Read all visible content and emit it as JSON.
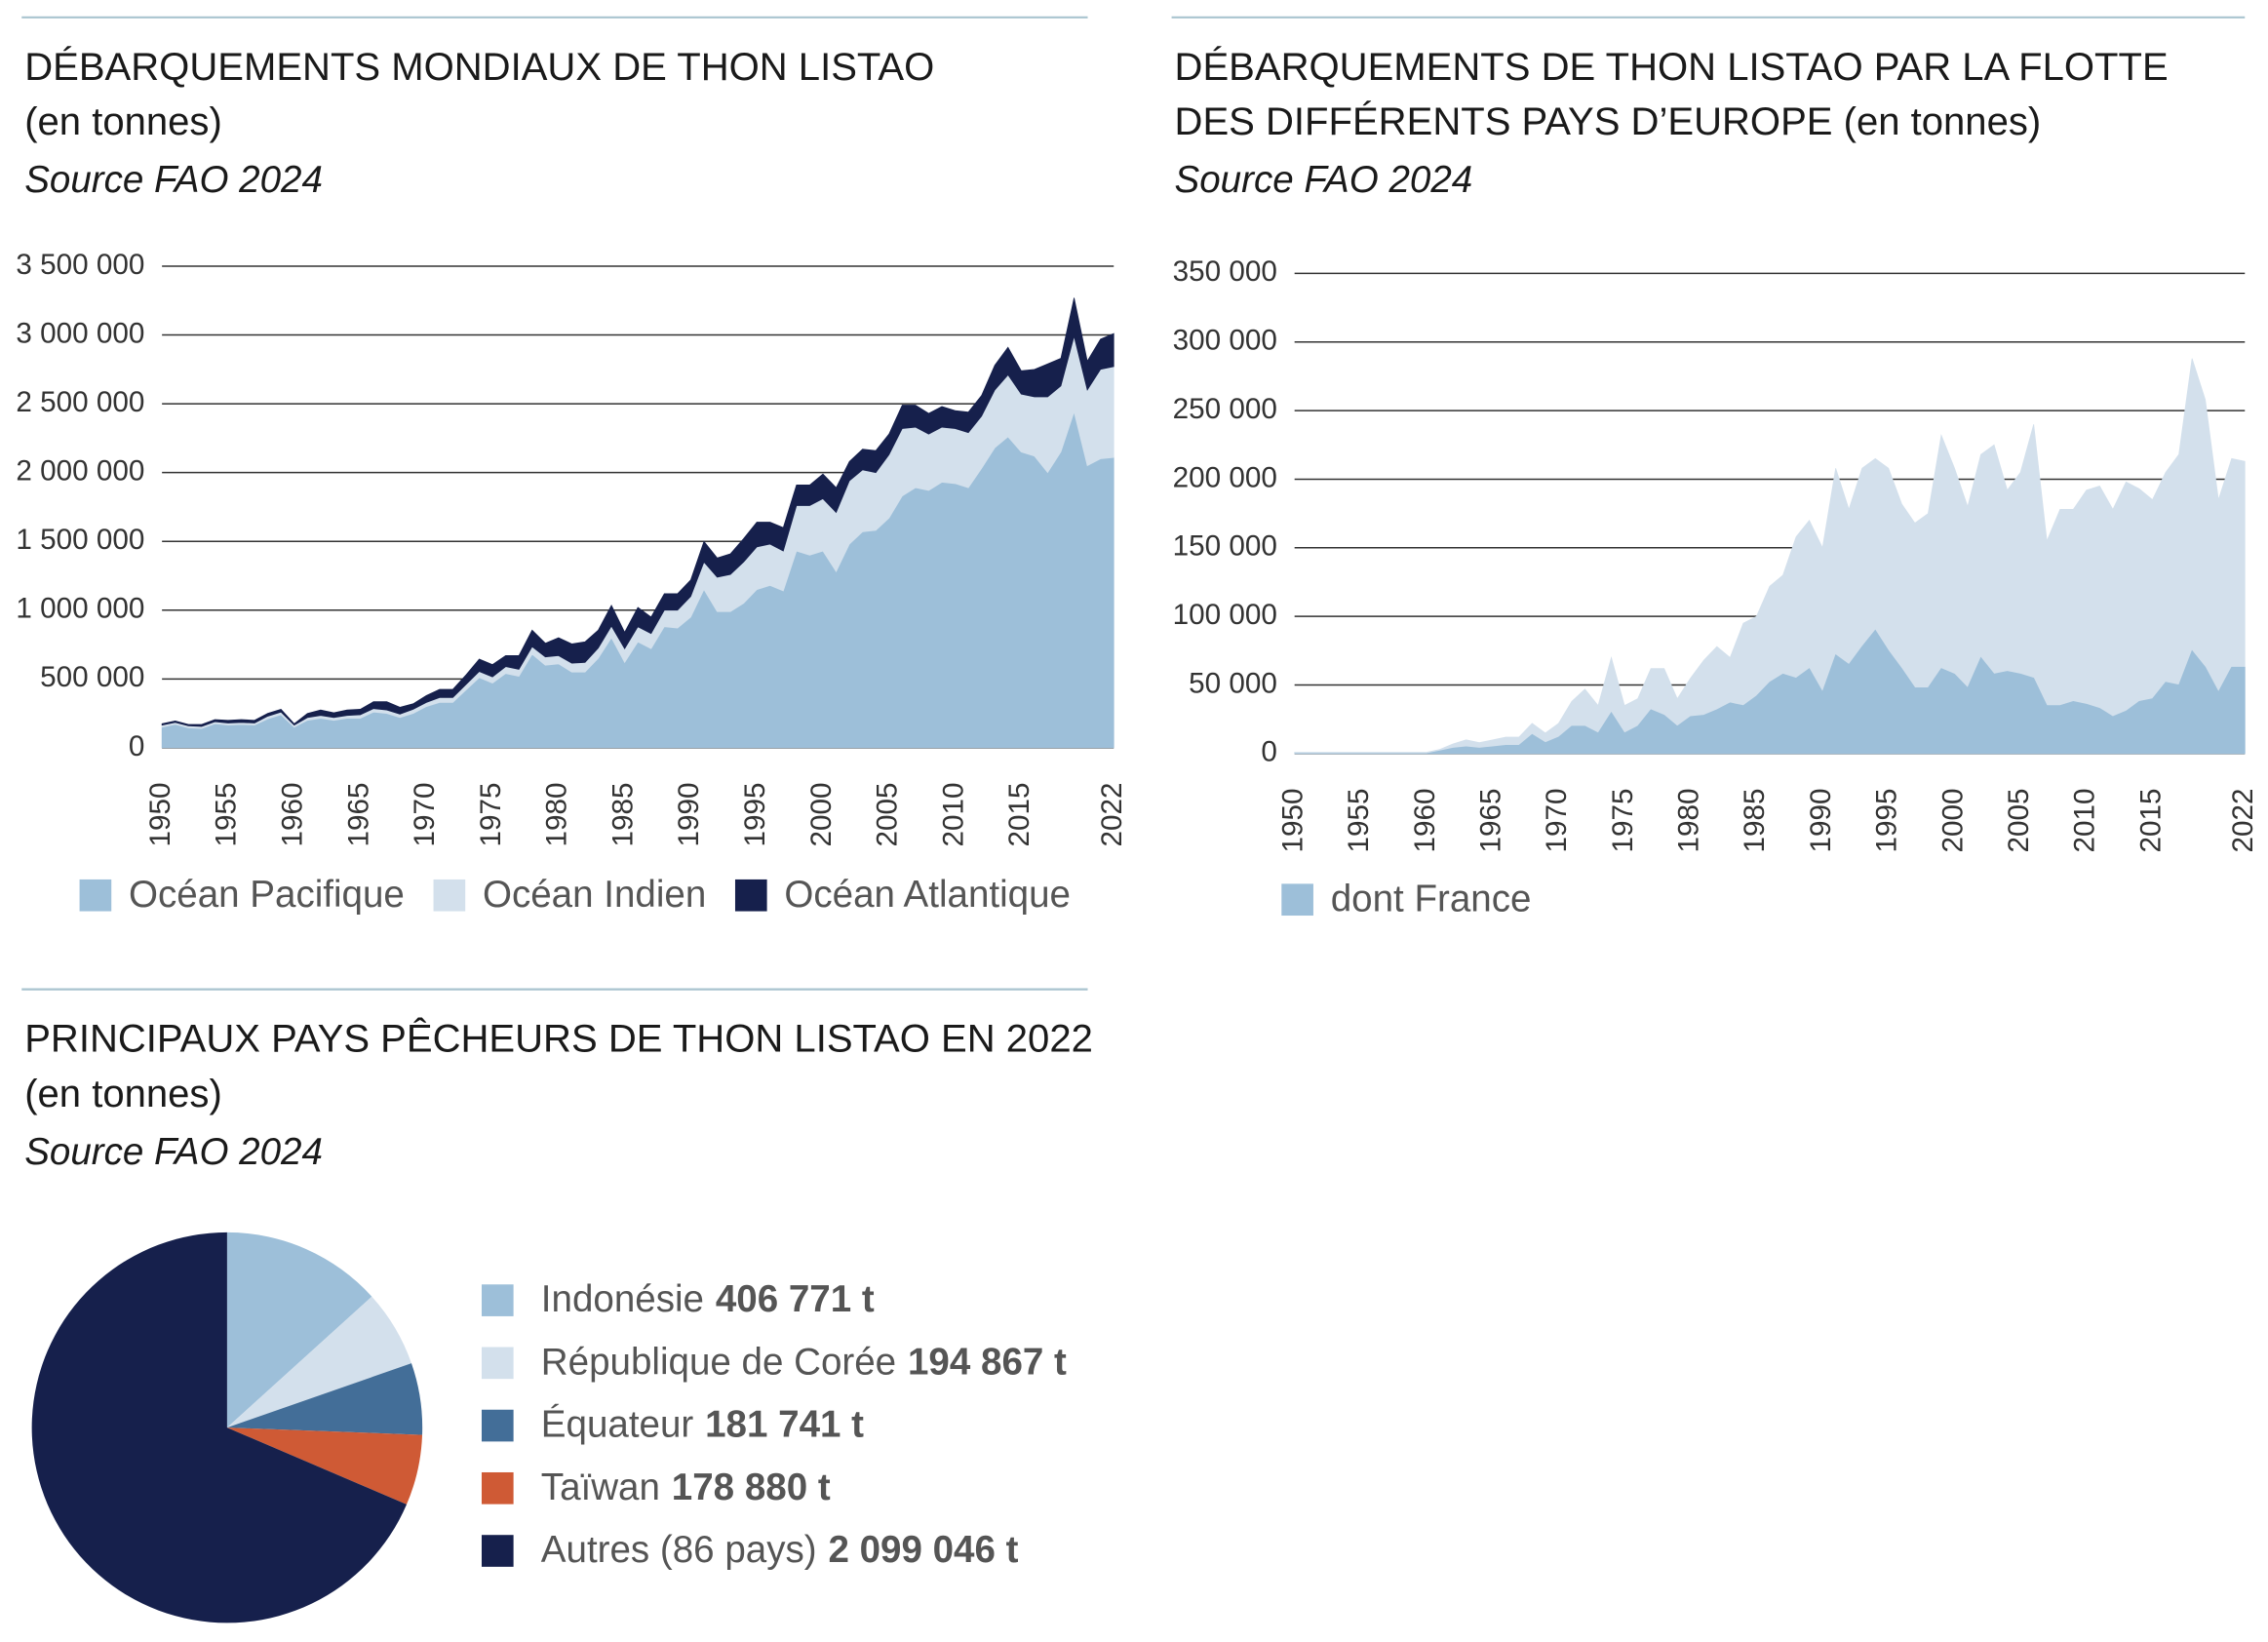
{
  "chart_data": [
    {
      "type": "area",
      "stacked": true,
      "title": [
        "DÉBARQUEMENTS MONDIAUX DE THON LISTAO",
        "(en tonnes)"
      ],
      "subtitle": "Source FAO 2024",
      "x": [
        1950,
        1951,
        1952,
        1953,
        1954,
        1955,
        1956,
        1957,
        1958,
        1959,
        1960,
        1961,
        1962,
        1963,
        1964,
        1965,
        1966,
        1967,
        1968,
        1969,
        1970,
        1971,
        1972,
        1973,
        1974,
        1975,
        1976,
        1977,
        1978,
        1979,
        1980,
        1981,
        1982,
        1983,
        1984,
        1985,
        1986,
        1987,
        1988,
        1989,
        1990,
        1991,
        1992,
        1993,
        1994,
        1995,
        1996,
        1997,
        1998,
        1999,
        2000,
        2001,
        2002,
        2003,
        2004,
        2005,
        2006,
        2007,
        2008,
        2009,
        2010,
        2011,
        2012,
        2013,
        2014,
        2015,
        2016,
        2017,
        2018,
        2019,
        2020,
        2021,
        2022
      ],
      "xlim": [
        1950,
        2022
      ],
      "xticks": [
        1950,
        1955,
        1960,
        1965,
        1970,
        1975,
        1980,
        1985,
        1990,
        1995,
        2000,
        2005,
        2010,
        2015,
        2022
      ],
      "ylim": [
        0,
        3500000
      ],
      "yticks": [
        0,
        {
          "value": 500000,
          "label": "500 000"
        },
        {
          "value": 1000000,
          "label": "1 000 000"
        },
        {
          "value": 1500000,
          "label": "1 500 000"
        },
        {
          "value": 2000000,
          "label": "2 000 000"
        },
        {
          "value": 2500000,
          "label": "2 500 000"
        },
        {
          "value": 3000000,
          "label": "3 000 000"
        },
        {
          "value": 3500000,
          "label": "3 500 000"
        }
      ],
      "grid": true,
      "legend": "bottom-left",
      "series": [
        {
          "name": "Océan Pacifique",
          "color": "#9dbfd9",
          "values": [
            150000,
            170000,
            145000,
            140000,
            175000,
            165000,
            170000,
            165000,
            210000,
            240000,
            150000,
            200000,
            215000,
            200000,
            215000,
            215000,
            260000,
            250000,
            220000,
            250000,
            300000,
            330000,
            330000,
            420000,
            510000,
            470000,
            540000,
            520000,
            680000,
            600000,
            610000,
            550000,
            550000,
            650000,
            800000,
            620000,
            770000,
            720000,
            880000,
            870000,
            950000,
            1150000,
            990000,
            990000,
            1050000,
            1150000,
            1180000,
            1140000,
            1430000,
            1400000,
            1430000,
            1280000,
            1480000,
            1570000,
            1580000,
            1670000,
            1830000,
            1890000,
            1870000,
            1930000,
            1920000,
            1890000,
            2030000,
            2180000,
            2260000,
            2150000,
            2120000,
            2000000,
            2150000,
            2440000,
            2050000,
            2100000,
            2110000
          ]
        },
        {
          "name": "Océan Indien",
          "color": "#d3e0ec",
          "values": [
            15000,
            15000,
            15000,
            15000,
            15000,
            15000,
            15000,
            15000,
            20000,
            20000,
            15000,
            20000,
            20000,
            20000,
            20000,
            25000,
            25000,
            25000,
            25000,
            30000,
            30000,
            35000,
            35000,
            40000,
            45000,
            45000,
            50000,
            50000,
            55000,
            60000,
            60000,
            65000,
            70000,
            75000,
            85000,
            100000,
            110000,
            110000,
            120000,
            130000,
            150000,
            200000,
            250000,
            270000,
            300000,
            310000,
            300000,
            290000,
            330000,
            360000,
            380000,
            430000,
            460000,
            450000,
            420000,
            460000,
            490000,
            440000,
            410000,
            400000,
            400000,
            400000,
            380000,
            420000,
            450000,
            420000,
            430000,
            550000,
            480000,
            550000,
            550000,
            650000,
            660000
          ]
        },
        {
          "name": "Océan Atlantique",
          "color": "#16204c",
          "values": [
            10000,
            10000,
            10000,
            15000,
            15000,
            20000,
            20000,
            20000,
            20000,
            20000,
            10000,
            30000,
            40000,
            35000,
            40000,
            40000,
            50000,
            60000,
            50000,
            40000,
            50000,
            60000,
            60000,
            70000,
            90000,
            90000,
            80000,
            100000,
            120000,
            100000,
            130000,
            140000,
            150000,
            130000,
            150000,
            120000,
            140000,
            120000,
            120000,
            120000,
            120000,
            150000,
            140000,
            150000,
            170000,
            180000,
            160000,
            170000,
            150000,
            150000,
            180000,
            180000,
            140000,
            150000,
            160000,
            150000,
            170000,
            160000,
            150000,
            150000,
            130000,
            150000,
            150000,
            180000,
            200000,
            170000,
            200000,
            240000,
            200000,
            280000,
            210000,
            220000,
            240000
          ]
        }
      ]
    },
    {
      "type": "area",
      "stacked": false,
      "title": [
        "DÉBARQUEMENTS DE THON LISTAO PAR LA FLOTTE",
        "DES DIFFÉRENTS PAYS D’EUROPE (en tonnes)"
      ],
      "subtitle": "Source FAO 2024",
      "x": [
        1950,
        1951,
        1952,
        1953,
        1954,
        1955,
        1956,
        1957,
        1958,
        1959,
        1960,
        1961,
        1962,
        1963,
        1964,
        1965,
        1966,
        1967,
        1968,
        1969,
        1970,
        1971,
        1972,
        1973,
        1974,
        1975,
        1976,
        1977,
        1978,
        1979,
        1980,
        1981,
        1982,
        1983,
        1984,
        1985,
        1986,
        1987,
        1988,
        1989,
        1990,
        1991,
        1992,
        1993,
        1994,
        1995,
        1996,
        1997,
        1998,
        1999,
        2000,
        2001,
        2002,
        2003,
        2004,
        2005,
        2006,
        2007,
        2008,
        2009,
        2010,
        2011,
        2012,
        2013,
        2014,
        2015,
        2016,
        2017,
        2018,
        2019,
        2020,
        2021,
        2022
      ],
      "xlim": [
        1950,
        2022
      ],
      "xticks": [
        1950,
        1955,
        1960,
        1965,
        1970,
        1975,
        1980,
        1985,
        1990,
        1995,
        2000,
        2005,
        2010,
        2015,
        2022
      ],
      "ylim": [
        0,
        350000
      ],
      "yticks": [
        0,
        {
          "value": 50000,
          "label": "50 000"
        },
        {
          "value": 100000,
          "label": "100 000"
        },
        {
          "value": 150000,
          "label": "150 000"
        },
        {
          "value": 200000,
          "label": "200 000"
        },
        {
          "value": 250000,
          "label": "250 000"
        },
        {
          "value": 300000,
          "label": "300 000"
        },
        {
          "value": 350000,
          "label": "350 000"
        }
      ],
      "grid": true,
      "legend": "bottom-left",
      "series": [
        {
          "color": "#d3e0ec",
          "values": [
            1000,
            1000,
            1000,
            1000,
            1000,
            1000,
            1000,
            1000,
            1000,
            1000,
            1000,
            3000,
            7000,
            10000,
            8000,
            10000,
            12000,
            12000,
            22000,
            15000,
            22000,
            38000,
            47000,
            35000,
            70000,
            35000,
            40000,
            62000,
            62000,
            40000,
            55000,
            68000,
            78000,
            70000,
            95000,
            100000,
            122000,
            130000,
            158000,
            170000,
            150000,
            208000,
            178000,
            208000,
            215000,
            208000,
            182000,
            168000,
            175000,
            232000,
            208000,
            180000,
            218000,
            225000,
            192000,
            205000,
            240000,
            155000,
            178000,
            178000,
            192000,
            195000,
            178000,
            198000,
            193000,
            185000,
            205000,
            218000,
            288000,
            258000,
            185000,
            215000,
            213000
          ]
        },
        {
          "name": "dont France",
          "color": "#9dbfd9",
          "values": [
            0,
            0,
            0,
            0,
            0,
            0,
            0,
            0,
            0,
            0,
            0,
            2000,
            4000,
            5000,
            4000,
            5000,
            6000,
            6000,
            14000,
            8000,
            12000,
            20000,
            20000,
            15000,
            30000,
            15000,
            20000,
            32000,
            28000,
            20000,
            27000,
            28000,
            32000,
            37000,
            35000,
            42000,
            52000,
            58000,
            55000,
            62000,
            45000,
            72000,
            65000,
            78000,
            90000,
            75000,
            62000,
            48000,
            48000,
            62000,
            58000,
            48000,
            70000,
            58000,
            60000,
            58000,
            55000,
            35000,
            35000,
            38000,
            36000,
            33000,
            27000,
            31000,
            38000,
            40000,
            52000,
            50000,
            75000,
            63000,
            45000,
            63000,
            63000
          ]
        }
      ]
    },
    {
      "type": "pie",
      "title": [
        "PRINCIPAUX PAYS PÊCHEURS DE THON LISTAO EN 2022",
        "(en tonnes)"
      ],
      "subtitle": "Source FAO 2024",
      "legend": "right",
      "categories": [
        "Indonésie",
        "République de Corée",
        "Équateur",
        "Taïwan",
        "Autres (86 pays)"
      ],
      "values": [
        406771,
        194867,
        181741,
        178880,
        2099046
      ],
      "value_labels": [
        "406 771 t",
        "194 867 t",
        "181 741 t",
        "178 880 t",
        "2 099 046 t"
      ],
      "colors": [
        "#9dbfd9",
        "#d3e0ec",
        "#436e98",
        "#cf5a35",
        "#16204c"
      ]
    }
  ]
}
